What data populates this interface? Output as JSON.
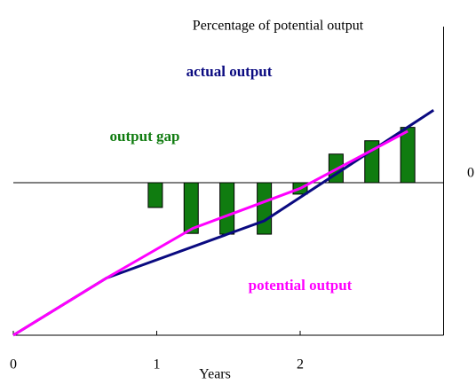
{
  "chart_data": {
    "type": "combo",
    "title": "Percentage of potential  output",
    "x_label": "Years",
    "xlim": [
      0,
      3
    ],
    "xticks": [
      0,
      1,
      2
    ],
    "ylim": [
      -4,
      4
    ],
    "yticks": [
      0
    ],
    "series": [
      {
        "name": "output gap",
        "type": "bar",
        "color": "#107c10",
        "x": [
          0.99,
          1.24,
          1.49,
          1.75,
          2.0,
          2.25,
          2.5,
          2.75
        ],
        "values": [
          -0.65,
          -1.33,
          -1.35,
          -1.35,
          -0.3,
          0.75,
          1.1,
          1.45
        ]
      },
      {
        "name": "actual output",
        "type": "line",
        "color": "#0a0a80",
        "x": [
          0,
          0.65,
          1.75,
          2.93
        ],
        "values": [
          -4,
          -2.5,
          -1.0,
          1.9
        ]
      },
      {
        "name": "potential output",
        "type": "line",
        "color": "#ff00ff",
        "x": [
          0,
          0.65,
          1.25,
          2.0,
          2.75
        ],
        "values": [
          -4,
          -2.5,
          -1.2,
          -0.15,
          1.35
        ]
      }
    ]
  }
}
